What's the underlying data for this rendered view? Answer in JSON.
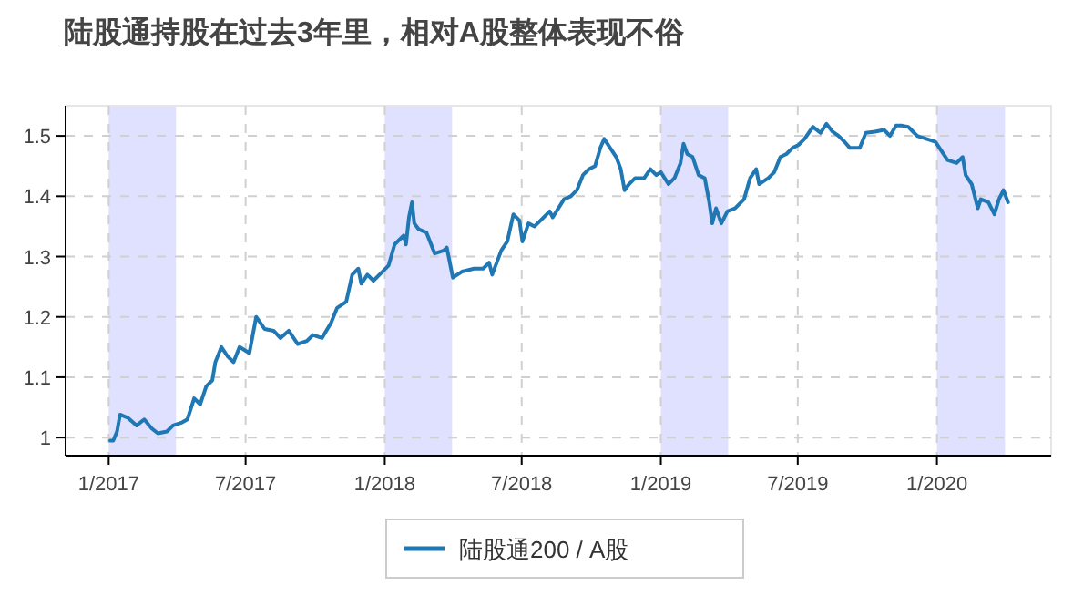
{
  "chart_data": {
    "type": "line",
    "title": "陆股通持股在过去3年里，相对A股整体表现不俗",
    "x": [
      "2017-01-03",
      "2017-01-07",
      "2017-01-12",
      "2017-01-16",
      "2017-01-26",
      "2017-02-07",
      "2017-02-17",
      "2017-02-27",
      "2017-03-07",
      "2017-03-19",
      "2017-03-27",
      "2017-04-08",
      "2017-04-15",
      "2017-04-24",
      "2017-05-02",
      "2017-05-10",
      "2017-05-18",
      "2017-05-22",
      "2017-05-30",
      "2017-06-07",
      "2017-06-15",
      "2017-06-23",
      "2017-07-06",
      "2017-07-15",
      "2017-07-26",
      "2017-08-07",
      "2017-08-16",
      "2017-08-27",
      "2017-09-08",
      "2017-09-20",
      "2017-09-28",
      "2017-10-10",
      "2017-10-22",
      "2017-10-30",
      "2017-11-11",
      "2017-11-19",
      "2017-11-27",
      "2017-12-01",
      "2017-12-09",
      "2017-12-17",
      "2017-12-29",
      "2018-01-06",
      "2018-01-14",
      "2018-01-26",
      "2018-01-29",
      "2018-02-02",
      "2018-02-06",
      "2018-02-09",
      "2018-02-15",
      "2018-02-25",
      "2018-03-08",
      "2018-03-20",
      "2018-03-24",
      "2018-04-01",
      "2018-04-13",
      "2018-04-29",
      "2018-05-11",
      "2018-05-19",
      "2018-05-23",
      "2018-06-04",
      "2018-06-12",
      "2018-06-20",
      "2018-06-28",
      "2018-07-02",
      "2018-07-10",
      "2018-07-18",
      "2018-07-26",
      "2018-08-07",
      "2018-08-11",
      "2018-08-26",
      "2018-09-04",
      "2018-09-12",
      "2018-09-20",
      "2018-09-28",
      "2018-10-06",
      "2018-10-13",
      "2018-10-18",
      "2018-10-26",
      "2018-11-03",
      "2018-11-09",
      "2018-11-14",
      "2018-11-20",
      "2018-11-28",
      "2018-12-10",
      "2018-12-18",
      "2018-12-26",
      "2019-01-01",
      "2019-01-11",
      "2019-01-19",
      "2019-01-27",
      "2019-01-31",
      "2019-02-05",
      "2019-02-12",
      "2019-02-20",
      "2019-02-28",
      "2019-03-06",
      "2019-03-10",
      "2019-03-15",
      "2019-03-22",
      "2019-03-30",
      "2019-04-09",
      "2019-04-21",
      "2019-04-29",
      "2019-05-07",
      "2019-05-11",
      "2019-05-23",
      "2019-05-31",
      "2019-06-08",
      "2019-06-16",
      "2019-06-24",
      "2019-07-02",
      "2019-07-10",
      "2019-07-21",
      "2019-07-31",
      "2019-08-08",
      "2019-08-16",
      "2019-08-24",
      "2019-09-01",
      "2019-09-08",
      "2019-09-21",
      "2019-09-29",
      "2019-10-11",
      "2019-10-23",
      "2019-10-31",
      "2019-11-08",
      "2019-11-16",
      "2019-11-24",
      "2019-11-28",
      "2019-12-06",
      "2019-12-18",
      "2019-12-30",
      "2020-01-07",
      "2020-01-15",
      "2020-01-27",
      "2020-02-04",
      "2020-02-08",
      "2020-02-16",
      "2020-02-24",
      "2020-02-28",
      "2020-03-09",
      "2020-03-17",
      "2020-03-23",
      "2020-03-29",
      "2020-04-04"
    ],
    "series": [
      {
        "name": "陆股通200 / A股",
        "color": "#1f77b4",
        "values": [
          0.995,
          0.995,
          1.01,
          1.038,
          1.033,
          1.02,
          1.03,
          1.015,
          1.007,
          1.01,
          1.02,
          1.025,
          1.03,
          1.065,
          1.055,
          1.085,
          1.095,
          1.125,
          1.15,
          1.135,
          1.125,
          1.15,
          1.14,
          1.2,
          1.18,
          1.177,
          1.165,
          1.177,
          1.155,
          1.16,
          1.17,
          1.165,
          1.19,
          1.215,
          1.225,
          1.27,
          1.28,
          1.255,
          1.27,
          1.26,
          1.275,
          1.285,
          1.32,
          1.335,
          1.32,
          1.365,
          1.39,
          1.355,
          1.345,
          1.34,
          1.305,
          1.31,
          1.315,
          1.265,
          1.275,
          1.28,
          1.28,
          1.29,
          1.27,
          1.31,
          1.325,
          1.37,
          1.36,
          1.325,
          1.355,
          1.35,
          1.36,
          1.375,
          1.365,
          1.395,
          1.4,
          1.41,
          1.435,
          1.445,
          1.45,
          1.48,
          1.495,
          1.48,
          1.465,
          1.445,
          1.41,
          1.42,
          1.43,
          1.43,
          1.445,
          1.435,
          1.44,
          1.42,
          1.43,
          1.455,
          1.487,
          1.47,
          1.465,
          1.435,
          1.43,
          1.39,
          1.355,
          1.38,
          1.355,
          1.375,
          1.38,
          1.395,
          1.43,
          1.445,
          1.42,
          1.43,
          1.44,
          1.465,
          1.47,
          1.48,
          1.485,
          1.495,
          1.515,
          1.505,
          1.52,
          1.507,
          1.5,
          1.49,
          1.48,
          1.48,
          1.505,
          1.507,
          1.51,
          1.5,
          1.517,
          1.517,
          1.515,
          1.51,
          1.5,
          1.495,
          1.49,
          1.475,
          1.46,
          1.455,
          1.465,
          1.435,
          1.42,
          1.38,
          1.395,
          1.39,
          1.37,
          1.395,
          1.41,
          1.39
        ]
      }
    ],
    "xlim": [
      "2016-11-05",
      "2020-05-31"
    ],
    "xticks": [
      {
        "value": "2017-01-01",
        "label": "1/2017"
      },
      {
        "value": "2017-07-01",
        "label": "7/2017"
      },
      {
        "value": "2018-01-01",
        "label": "1/2018"
      },
      {
        "value": "2018-07-01",
        "label": "7/2018"
      },
      {
        "value": "2019-01-01",
        "label": "1/2019"
      },
      {
        "value": "2019-07-01",
        "label": "7/2019"
      },
      {
        "value": "2020-01-01",
        "label": "1/2020"
      }
    ],
    "ylim": [
      0.97,
      1.55
    ],
    "yticks": [
      1,
      1.1,
      1.2,
      1.3,
      1.4,
      1.5
    ],
    "bands": [
      {
        "axis": "x",
        "from": "2017-01-01",
        "to": "2017-03-31",
        "color": "#e0e0ff"
      },
      {
        "axis": "x",
        "from": "2018-01-01",
        "to": "2018-03-31",
        "color": "#e0e0ff"
      },
      {
        "axis": "x",
        "from": "2019-01-01",
        "to": "2019-03-31",
        "color": "#e0e0ff"
      },
      {
        "axis": "x",
        "from": "2020-01-01",
        "to": "2020-03-31",
        "color": "#e0e0ff"
      }
    ],
    "grid": true,
    "legend": "bottom",
    "line_style": "solid",
    "marker": "none"
  }
}
